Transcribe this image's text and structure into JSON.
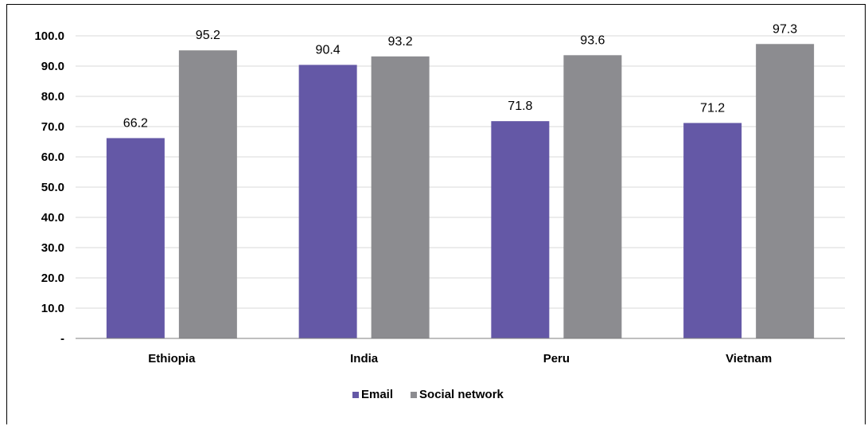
{
  "chart_data": {
    "type": "bar",
    "categories": [
      "Ethiopia",
      "India",
      "Peru",
      "Vietnam"
    ],
    "series": [
      {
        "name": "Email",
        "values": [
          66.2,
          90.4,
          71.8,
          71.2
        ],
        "color": "#6458A6"
      },
      {
        "name": "Social network",
        "values": [
          95.2,
          93.2,
          93.6,
          97.3
        ],
        "color": "#8C8C90"
      }
    ],
    "data_labels": {
      "Email": [
        "66.2",
        "90.4",
        "71.8",
        "71.2"
      ],
      "Social network": [
        "95.2",
        "93.2",
        "93.6",
        "97.3"
      ]
    },
    "y_ticks": [
      "-",
      "10.0",
      "20.0",
      "30.0",
      "40.0",
      "50.0",
      "60.0",
      "70.0",
      "80.0",
      "90.0",
      "100.0"
    ],
    "ylim": [
      0,
      100
    ],
    "grid": true,
    "legend_position": "bottom",
    "title": "",
    "xlabel": "",
    "ylabel": ""
  }
}
